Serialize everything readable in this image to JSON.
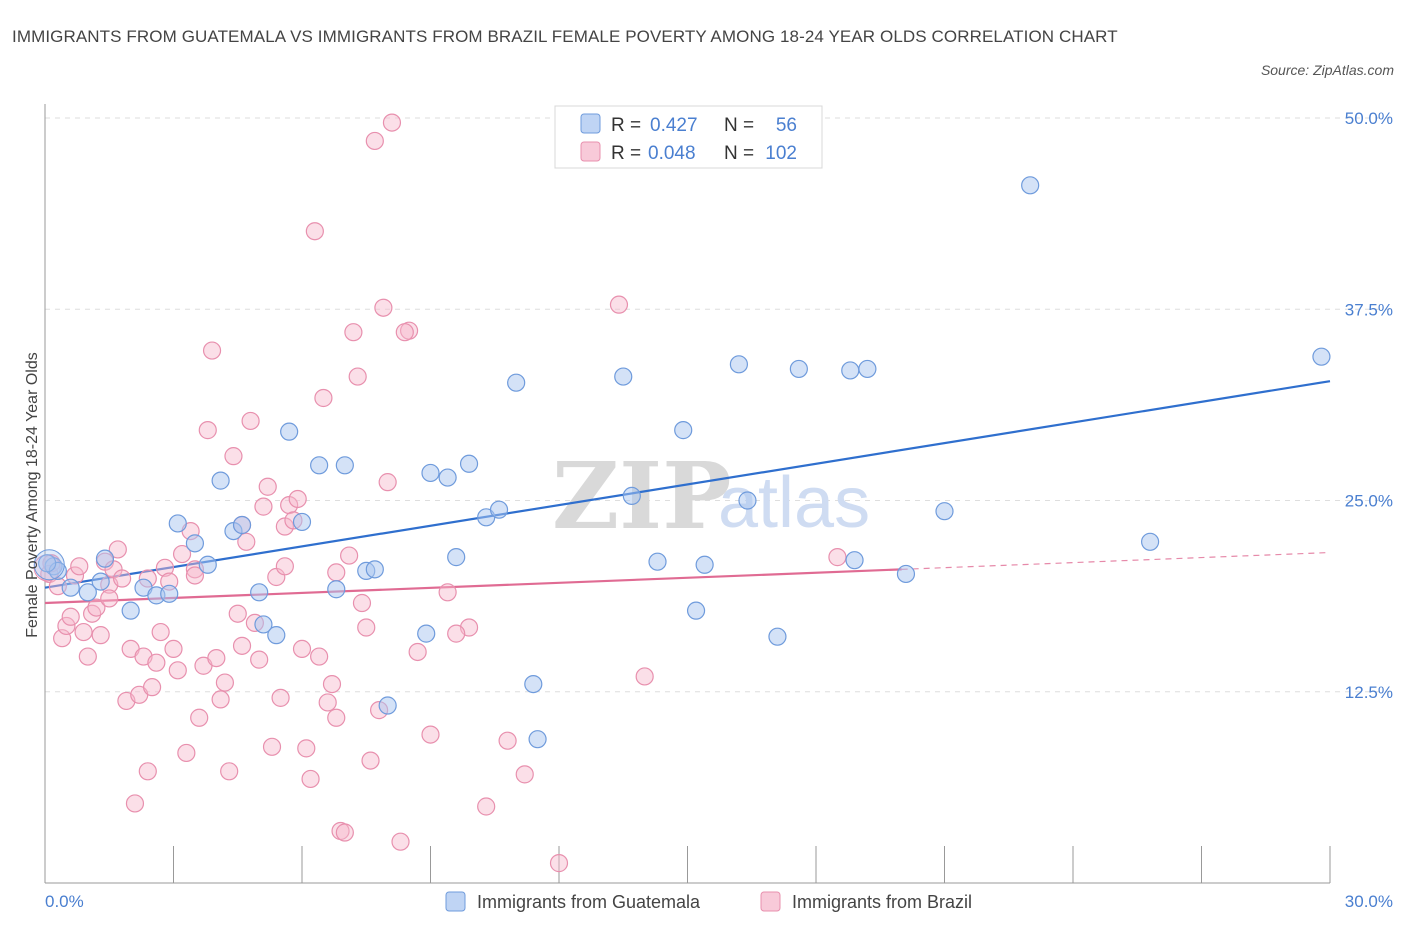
{
  "title": "IMMIGRANTS FROM GUATEMALA VS IMMIGRANTS FROM BRAZIL FEMALE POVERTY AMONG 18-24 YEAR OLDS CORRELATION CHART",
  "source": "Source: ZipAtlas.com",
  "watermark": {
    "zip": "ZIP",
    "atlas": "atlas"
  },
  "colors": {
    "guatemala_fill": "#a9c6f0",
    "guatemala_stroke": "#6f9bdc",
    "guatemala_line": "#2f6fce",
    "brazil_fill": "#f6b8cc",
    "brazil_stroke": "#e890ae",
    "brazil_line": "#e06b93",
    "accent_text": "#4a7fd0"
  },
  "legend": {
    "rows": [
      {
        "r_label": "R =",
        "r_value": "0.427",
        "n_label": "N =",
        "n_value": "56"
      },
      {
        "r_label": "R =",
        "r_value": "0.048",
        "n_label": "N =",
        "n_value": "102"
      }
    ]
  },
  "chart_data": {
    "type": "scatter",
    "xlabel": "",
    "ylabel": "Female Poverty Among 18-24 Year Olds",
    "xlim": [
      0,
      30
    ],
    "ylim": [
      0,
      50
    ],
    "x_tick_labels": [
      "0.0%",
      "30.0%"
    ],
    "y_ticks": [
      12.5,
      25.0,
      37.5,
      50.0
    ],
    "y_tick_labels": [
      "12.5%",
      "25.0%",
      "37.5%",
      "50.0%"
    ],
    "grid": true,
    "legend_position": "top-center",
    "series": [
      {
        "name": "Immigrants from Guatemala",
        "r": 0.427,
        "n": 56,
        "trend": {
          "x0": 0.0,
          "y0": 19.3,
          "x1": 30.0,
          "y1": 32.8
        },
        "points": [
          [
            0.2,
            20.7
          ],
          [
            0.3,
            20.4
          ],
          [
            0.6,
            19.3
          ],
          [
            1.0,
            19.0
          ],
          [
            1.3,
            19.7
          ],
          [
            1.4,
            21.2
          ],
          [
            2.0,
            17.8
          ],
          [
            2.3,
            19.3
          ],
          [
            2.6,
            18.8
          ],
          [
            2.9,
            18.9
          ],
          [
            3.1,
            23.5
          ],
          [
            3.5,
            22.2
          ],
          [
            3.8,
            20.8
          ],
          [
            4.1,
            26.3
          ],
          [
            4.4,
            23.0
          ],
          [
            4.6,
            23.4
          ],
          [
            5.0,
            19.0
          ],
          [
            5.1,
            16.9
          ],
          [
            5.4,
            16.2
          ],
          [
            5.7,
            29.5
          ],
          [
            6.0,
            23.6
          ],
          [
            6.4,
            27.3
          ],
          [
            6.8,
            19.2
          ],
          [
            7.0,
            27.3
          ],
          [
            7.5,
            20.4
          ],
          [
            7.7,
            20.5
          ],
          [
            8.0,
            11.6
          ],
          [
            8.9,
            16.3
          ],
          [
            9.0,
            26.8
          ],
          [
            9.4,
            26.5
          ],
          [
            9.6,
            21.3
          ],
          [
            9.9,
            27.4
          ],
          [
            10.3,
            23.9
          ],
          [
            10.6,
            24.4
          ],
          [
            11.0,
            32.7
          ],
          [
            11.4,
            13.0
          ],
          [
            11.5,
            9.4
          ],
          [
            13.5,
            33.1
          ],
          [
            13.7,
            25.3
          ],
          [
            14.3,
            21.0
          ],
          [
            14.9,
            29.6
          ],
          [
            15.2,
            17.8
          ],
          [
            15.4,
            20.8
          ],
          [
            16.2,
            33.9
          ],
          [
            16.4,
            25.0
          ],
          [
            17.1,
            16.1
          ],
          [
            17.6,
            33.6
          ],
          [
            18.8,
            33.5
          ],
          [
            18.9,
            21.1
          ],
          [
            19.2,
            33.6
          ],
          [
            20.1,
            20.2
          ],
          [
            21.0,
            24.3
          ],
          [
            23.0,
            45.6
          ],
          [
            25.8,
            22.3
          ],
          [
            29.8,
            34.4
          ],
          [
            0.05,
            20.9
          ]
        ]
      },
      {
        "name": "Immigrants from Brazil",
        "r": 0.048,
        "n": 102,
        "trend": {
          "x0": 0.0,
          "y0": 18.3,
          "x1": 20.0,
          "y1": 20.5
        },
        "trend_dashed": {
          "x0": 20.0,
          "y0": 20.5,
          "x1": 30.0,
          "y1": 21.6
        },
        "points": [
          [
            0.1,
            20.2
          ],
          [
            0.3,
            19.4
          ],
          [
            0.4,
            16.0
          ],
          [
            0.5,
            16.8
          ],
          [
            0.6,
            17.4
          ],
          [
            0.7,
            20.1
          ],
          [
            0.8,
            20.7
          ],
          [
            0.9,
            16.4
          ],
          [
            1.0,
            14.8
          ],
          [
            1.1,
            17.6
          ],
          [
            1.2,
            18.0
          ],
          [
            1.3,
            16.2
          ],
          [
            1.4,
            21.0
          ],
          [
            1.5,
            19.5
          ],
          [
            1.6,
            20.5
          ],
          [
            1.7,
            21.8
          ],
          [
            1.8,
            19.9
          ],
          [
            1.9,
            11.9
          ],
          [
            2.0,
            15.3
          ],
          [
            2.1,
            5.2
          ],
          [
            2.2,
            12.3
          ],
          [
            2.3,
            14.8
          ],
          [
            2.4,
            7.3
          ],
          [
            2.5,
            12.8
          ],
          [
            2.6,
            14.4
          ],
          [
            2.7,
            16.4
          ],
          [
            2.8,
            20.6
          ],
          [
            2.9,
            19.7
          ],
          [
            3.0,
            15.3
          ],
          [
            3.1,
            13.9
          ],
          [
            3.2,
            21.5
          ],
          [
            3.3,
            8.5
          ],
          [
            3.4,
            23.0
          ],
          [
            3.5,
            20.5
          ],
          [
            3.6,
            10.8
          ],
          [
            3.7,
            14.2
          ],
          [
            3.8,
            29.6
          ],
          [
            3.9,
            34.8
          ],
          [
            4.0,
            14.7
          ],
          [
            4.1,
            12.0
          ],
          [
            4.2,
            13.1
          ],
          [
            4.3,
            7.3
          ],
          [
            4.4,
            27.9
          ],
          [
            4.5,
            17.6
          ],
          [
            4.6,
            15.5
          ],
          [
            4.7,
            22.3
          ],
          [
            4.8,
            30.2
          ],
          [
            4.9,
            17.0
          ],
          [
            5.0,
            14.6
          ],
          [
            5.1,
            24.6
          ],
          [
            5.2,
            25.9
          ],
          [
            5.3,
            8.9
          ],
          [
            5.4,
            20.0
          ],
          [
            5.5,
            12.1
          ],
          [
            5.6,
            23.3
          ],
          [
            5.7,
            24.7
          ],
          [
            5.8,
            23.7
          ],
          [
            5.9,
            25.1
          ],
          [
            6.0,
            15.3
          ],
          [
            6.1,
            8.8
          ],
          [
            6.2,
            6.8
          ],
          [
            6.3,
            42.6
          ],
          [
            6.4,
            14.8
          ],
          [
            6.5,
            31.7
          ],
          [
            6.6,
            11.8
          ],
          [
            6.7,
            13.0
          ],
          [
            6.8,
            10.8
          ],
          [
            6.9,
            3.4
          ],
          [
            7.0,
            3.3
          ],
          [
            7.1,
            21.4
          ],
          [
            7.2,
            36.0
          ],
          [
            7.3,
            33.1
          ],
          [
            7.4,
            18.3
          ],
          [
            7.5,
            16.7
          ],
          [
            7.6,
            8.0
          ],
          [
            7.7,
            48.5
          ],
          [
            7.8,
            11.3
          ],
          [
            7.9,
            37.6
          ],
          [
            8.0,
            26.2
          ],
          [
            8.1,
            49.7
          ],
          [
            8.3,
            2.7
          ],
          [
            8.5,
            36.1
          ],
          [
            8.7,
            15.1
          ],
          [
            9.0,
            9.7
          ],
          [
            9.4,
            19.0
          ],
          [
            9.9,
            16.7
          ],
          [
            10.3,
            5.0
          ],
          [
            10.8,
            9.3
          ],
          [
            11.2,
            7.1
          ],
          [
            12.0,
            1.3
          ],
          [
            13.4,
            37.8
          ],
          [
            14.0,
            13.5
          ],
          [
            18.5,
            21.3
          ],
          [
            0.15,
            20.9
          ],
          [
            1.5,
            18.6
          ],
          [
            2.4,
            19.9
          ],
          [
            3.5,
            20.1
          ],
          [
            4.6,
            23.4
          ],
          [
            5.6,
            20.7
          ],
          [
            6.8,
            20.3
          ],
          [
            8.4,
            36.0
          ],
          [
            9.6,
            16.3
          ]
        ]
      }
    ]
  }
}
